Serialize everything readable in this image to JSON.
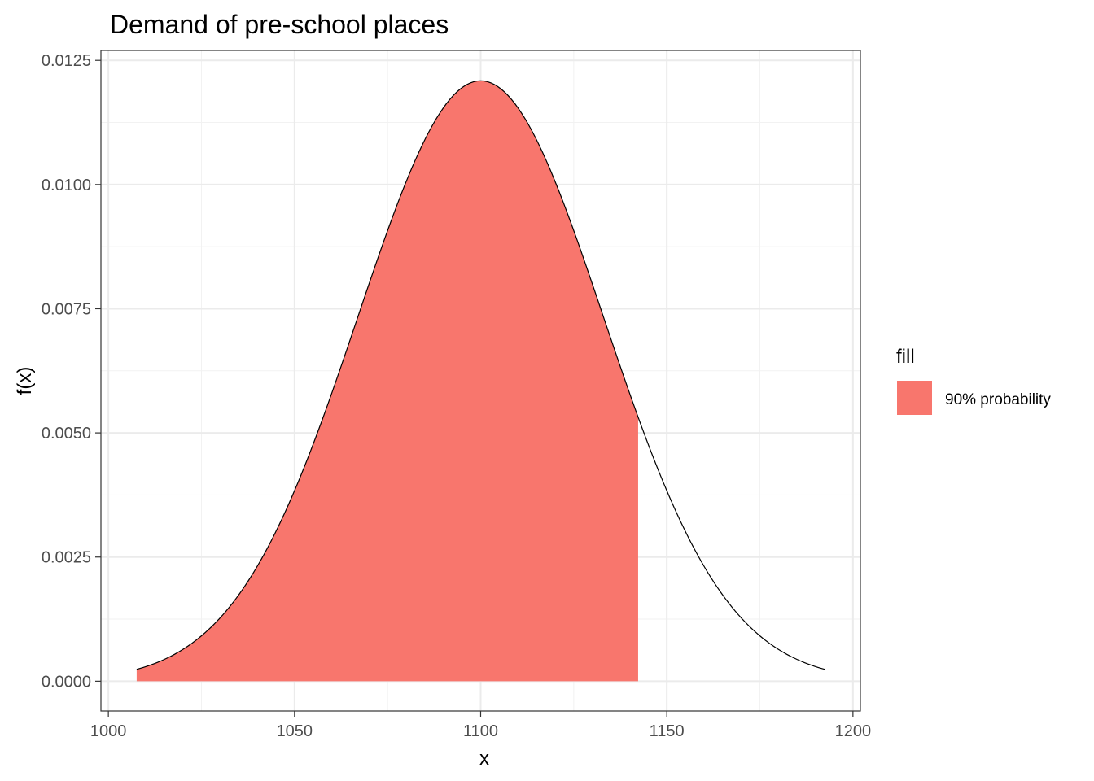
{
  "chart_data": {
    "type": "area",
    "title": "Demand of pre-school places",
    "xlabel": "x",
    "ylabel": "f(x)",
    "xlim": [
      998,
      1202
    ],
    "ylim": [
      -0.0006,
      0.0127
    ],
    "x_ticks": [
      1000,
      1050,
      1100,
      1150,
      1200
    ],
    "x_tick_labels": [
      "1000",
      "1050",
      "1100",
      "1150",
      "1200"
    ],
    "y_ticks": [
      0,
      0.0025,
      0.005,
      0.0075,
      0.01,
      0.0125
    ],
    "y_tick_labels": [
      "0.0000",
      "0.0025",
      "0.0050",
      "0.0075",
      "0.0100",
      "0.0125"
    ],
    "grid": true,
    "legend_position": "right",
    "legend": {
      "title": "fill",
      "entries": [
        {
          "label": "90% probability",
          "color": "#F8766D"
        }
      ]
    },
    "density": {
      "mean": 1100,
      "sd": 33,
      "x_range": [
        1007.6,
        1192.4
      ]
    },
    "shaded_region": {
      "name": "90% probability",
      "x_range": [
        1007.6,
        1142.3
      ],
      "color": "#F8766D"
    },
    "curve_color": "#000000"
  }
}
